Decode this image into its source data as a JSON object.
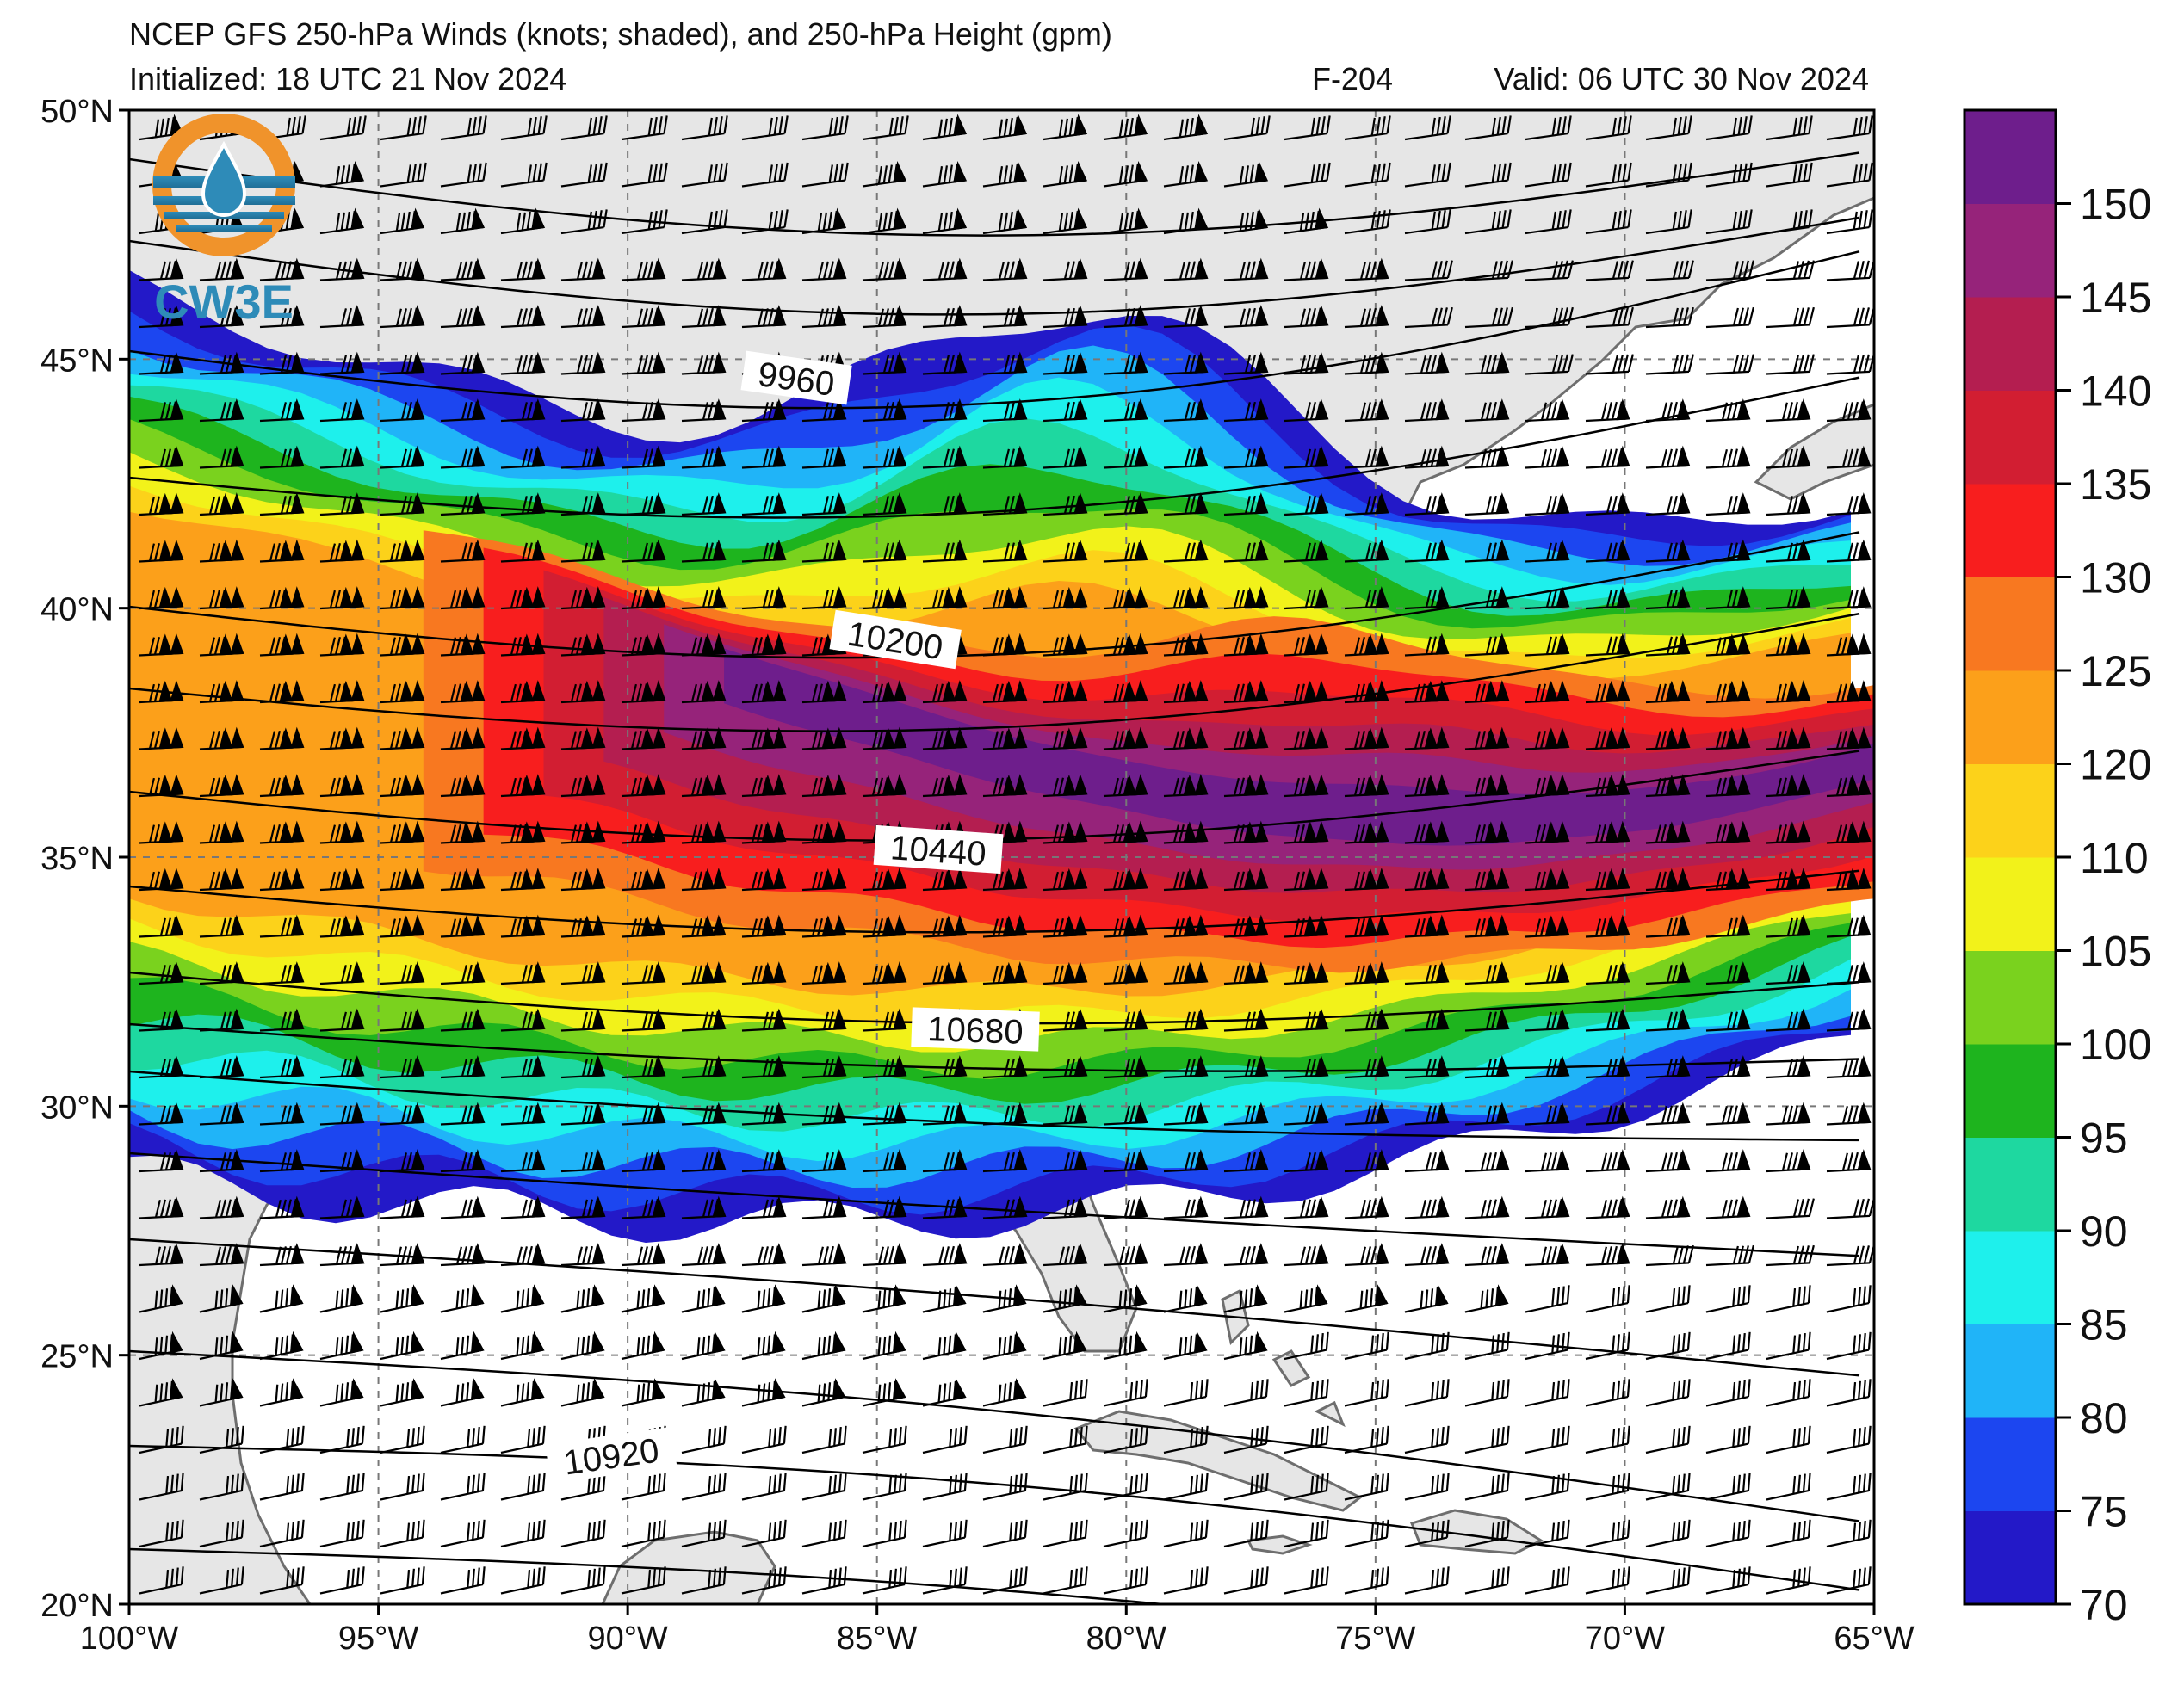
{
  "header": {
    "title": "NCEP GFS 250-hPa Winds (knots; shaded), and 250-hPa Height (gpm)",
    "initialized": "Initialized: 18 UTC 21 Nov 2024",
    "forecast": "F-204",
    "valid": "Valid: 06 UTC 30 Nov 2024"
  },
  "logo": {
    "text": "CW3E"
  },
  "map": {
    "lat_ticks": [
      "50°N",
      "45°N",
      "40°N",
      "35°N",
      "30°N",
      "25°N",
      "20°N"
    ],
    "lon_ticks": [
      "100°W",
      "95°W",
      "90°W",
      "85°W",
      "80°W",
      "75°W",
      "70°W",
      "65°W"
    ],
    "extent": {
      "lon": [
        -100,
        -65
      ],
      "lat": [
        20,
        50
      ]
    },
    "gridlines": true,
    "ocean_color": "#ffffff",
    "land_color": "#e6e6e6",
    "coast_color": "#6e6e6e"
  },
  "contours": {
    "labels": [
      "9960",
      "10200",
      "10440",
      "10680",
      "10920"
    ],
    "color": "#000000"
  },
  "colorbar": {
    "ticks": [
      "70",
      "75",
      "80",
      "85",
      "90",
      "95",
      "100",
      "105",
      "110",
      "120",
      "125",
      "130",
      "135",
      "140",
      "145",
      "150"
    ],
    "colors": [
      "#2319c8",
      "#1c46f0",
      "#20b4f8",
      "#1ef0ec",
      "#1ed8a0",
      "#1eb41e",
      "#7ad21e",
      "#f2f21a",
      "#fcd21a",
      "#fca01a",
      "#f87820",
      "#f81e1e",
      "#d21e32",
      "#b41e50",
      "#96237a",
      "#6e1e8c"
    ]
  }
}
